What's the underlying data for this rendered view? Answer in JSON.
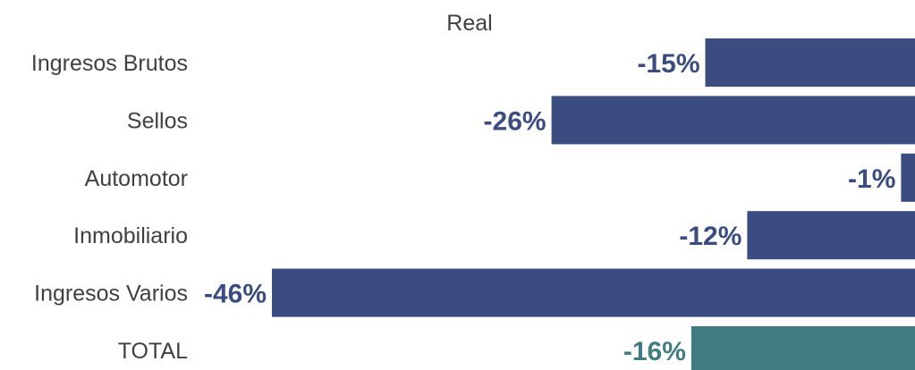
{
  "chart_data": {
    "type": "bar",
    "orientation": "horizontal",
    "title": "Real",
    "categories": [
      "Ingresos Brutos",
      "Sellos",
      "Automotor",
      "Inmobiliario",
      "Ingresos Varios",
      "TOTAL"
    ],
    "values": [
      -15,
      -26,
      -1,
      -12,
      -46,
      -16
    ],
    "value_labels": [
      "-15%",
      "-26%",
      "-1%",
      "-12%",
      "-46%",
      "-16%"
    ],
    "xlim": [
      -46,
      0
    ],
    "colors": [
      "#3a4c80",
      "#3a4c80",
      "#3a4c80",
      "#3a4c80",
      "#3a4c80",
      "#417c83"
    ],
    "label_colors": [
      "#3a4c80",
      "#3a4c80",
      "#3a4c80",
      "#3a4c80",
      "#3a4c80",
      "#417c83"
    ],
    "grid": false,
    "legend": "none"
  }
}
